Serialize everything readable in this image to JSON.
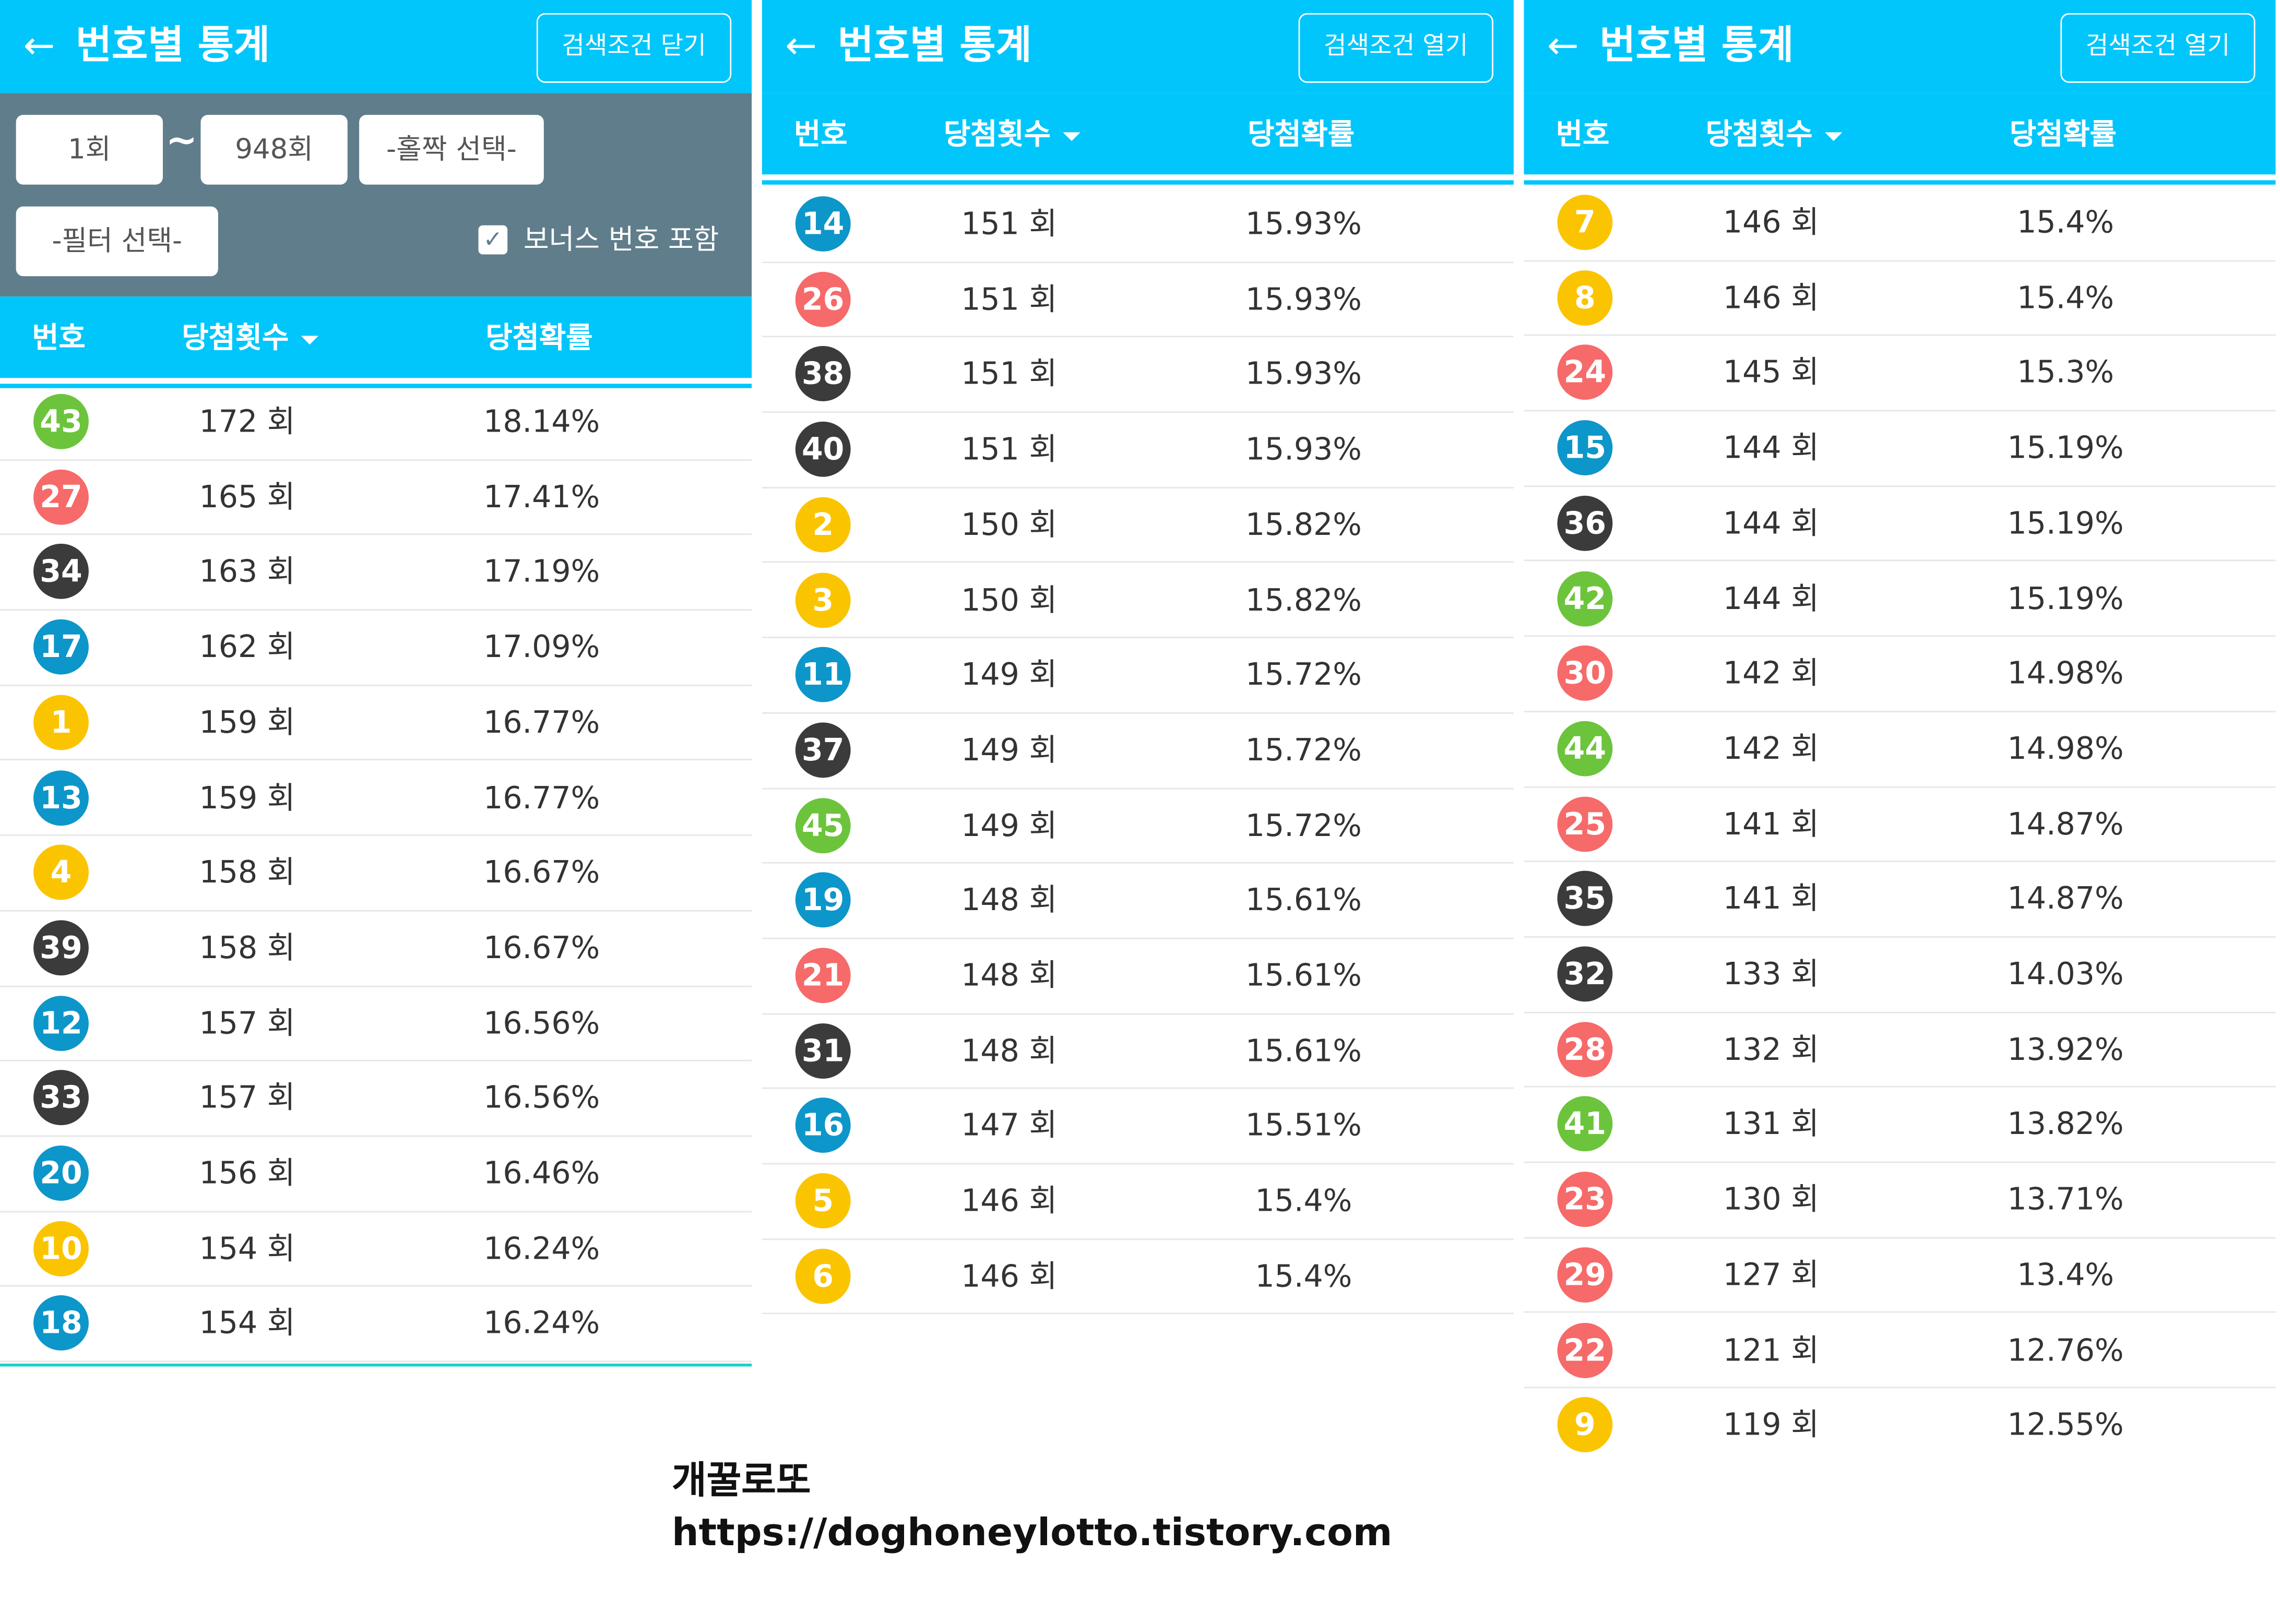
{
  "colors": {
    "accent": "#00c6fb",
    "filter_bg": "#607d8b",
    "yellow": "#fbc400",
    "blue": "#0d96c9",
    "red": "#f66a6a",
    "dark": "#3b3b3b",
    "green": "#6cc43c"
  },
  "panels": [
    {
      "title": "번호별 통계",
      "back_icon": "arrow-left-icon",
      "search_button": "검색조건 닫기",
      "filters": {
        "from": "1회",
        "to": "948회",
        "tilde": "~",
        "odd_even": "-홀짝 선택-",
        "filter": "-필터 선택-",
        "bonus_label": "보너스 번호 포함",
        "bonus_checked": true
      },
      "headers": {
        "number": "번호",
        "count": "당첨횟수",
        "rate": "당첨확률"
      },
      "rows": [
        {
          "num": "43",
          "color": "green",
          "count": "172 회",
          "rate": "18.14%"
        },
        {
          "num": "27",
          "color": "red",
          "count": "165 회",
          "rate": "17.41%"
        },
        {
          "num": "34",
          "color": "dark",
          "count": "163 회",
          "rate": "17.19%"
        },
        {
          "num": "17",
          "color": "blue",
          "count": "162 회",
          "rate": "17.09%"
        },
        {
          "num": "1",
          "color": "yellow",
          "count": "159 회",
          "rate": "16.77%"
        },
        {
          "num": "13",
          "color": "blue",
          "count": "159 회",
          "rate": "16.77%"
        },
        {
          "num": "4",
          "color": "yellow",
          "count": "158 회",
          "rate": "16.67%"
        },
        {
          "num": "39",
          "color": "dark",
          "count": "158 회",
          "rate": "16.67%"
        },
        {
          "num": "12",
          "color": "blue",
          "count": "157 회",
          "rate": "16.56%"
        },
        {
          "num": "33",
          "color": "dark",
          "count": "157 회",
          "rate": "16.56%"
        },
        {
          "num": "20",
          "color": "blue",
          "count": "156 회",
          "rate": "16.46%"
        },
        {
          "num": "10",
          "color": "yellow",
          "count": "154 회",
          "rate": "16.24%"
        },
        {
          "num": "18",
          "color": "blue",
          "count": "154 회",
          "rate": "16.24%"
        }
      ]
    },
    {
      "title": "번호별 통계",
      "back_icon": "arrow-left-icon",
      "search_button": "검색조건 열기",
      "headers": {
        "number": "번호",
        "count": "당첨횟수",
        "rate": "당첨확률"
      },
      "rows": [
        {
          "num": "14",
          "color": "blue",
          "count": "151 회",
          "rate": "15.93%"
        },
        {
          "num": "26",
          "color": "red",
          "count": "151 회",
          "rate": "15.93%"
        },
        {
          "num": "38",
          "color": "dark",
          "count": "151 회",
          "rate": "15.93%"
        },
        {
          "num": "40",
          "color": "dark",
          "count": "151 회",
          "rate": "15.93%"
        },
        {
          "num": "2",
          "color": "yellow",
          "count": "150 회",
          "rate": "15.82%"
        },
        {
          "num": "3",
          "color": "yellow",
          "count": "150 회",
          "rate": "15.82%"
        },
        {
          "num": "11",
          "color": "blue",
          "count": "149 회",
          "rate": "15.72%"
        },
        {
          "num": "37",
          "color": "dark",
          "count": "149 회",
          "rate": "15.72%"
        },
        {
          "num": "45",
          "color": "green",
          "count": "149 회",
          "rate": "15.72%"
        },
        {
          "num": "19",
          "color": "blue",
          "count": "148 회",
          "rate": "15.61%"
        },
        {
          "num": "21",
          "color": "red",
          "count": "148 회",
          "rate": "15.61%"
        },
        {
          "num": "31",
          "color": "dark",
          "count": "148 회",
          "rate": "15.61%"
        },
        {
          "num": "16",
          "color": "blue",
          "count": "147 회",
          "rate": "15.51%"
        },
        {
          "num": "5",
          "color": "yellow",
          "count": "146 회",
          "rate": "15.4%"
        },
        {
          "num": "6",
          "color": "yellow",
          "count": "146 회",
          "rate": "15.4%"
        }
      ]
    },
    {
      "title": "번호별 통계",
      "back_icon": "arrow-left-icon",
      "search_button": "검색조건 열기",
      "headers": {
        "number": "번호",
        "count": "당첨횟수",
        "rate": "당첨확률"
      },
      "rows": [
        {
          "num": "7",
          "color": "yellow",
          "count": "146 회",
          "rate": "15.4%"
        },
        {
          "num": "8",
          "color": "yellow",
          "count": "146 회",
          "rate": "15.4%"
        },
        {
          "num": "24",
          "color": "red",
          "count": "145 회",
          "rate": "15.3%"
        },
        {
          "num": "15",
          "color": "blue",
          "count": "144 회",
          "rate": "15.19%"
        },
        {
          "num": "36",
          "color": "dark",
          "count": "144 회",
          "rate": "15.19%"
        },
        {
          "num": "42",
          "color": "green",
          "count": "144 회",
          "rate": "15.19%"
        },
        {
          "num": "30",
          "color": "red",
          "count": "142 회",
          "rate": "14.98%"
        },
        {
          "num": "44",
          "color": "green",
          "count": "142 회",
          "rate": "14.98%"
        },
        {
          "num": "25",
          "color": "red",
          "count": "141 회",
          "rate": "14.87%"
        },
        {
          "num": "35",
          "color": "dark",
          "count": "141 회",
          "rate": "14.87%"
        },
        {
          "num": "32",
          "color": "dark",
          "count": "133 회",
          "rate": "14.03%"
        },
        {
          "num": "28",
          "color": "red",
          "count": "132 회",
          "rate": "13.92%"
        },
        {
          "num": "41",
          "color": "green",
          "count": "131 회",
          "rate": "13.82%"
        },
        {
          "num": "23",
          "color": "red",
          "count": "130 회",
          "rate": "13.71%"
        },
        {
          "num": "29",
          "color": "red",
          "count": "127 회",
          "rate": "13.4%"
        },
        {
          "num": "22",
          "color": "red",
          "count": "121 회",
          "rate": "12.76%"
        },
        {
          "num": "9",
          "color": "yellow",
          "count": "119 회",
          "rate": "12.55%"
        }
      ]
    }
  ],
  "footer": {
    "brand": "개꿀로또",
    "url": "https://doghoneylotto.tistory.com"
  }
}
